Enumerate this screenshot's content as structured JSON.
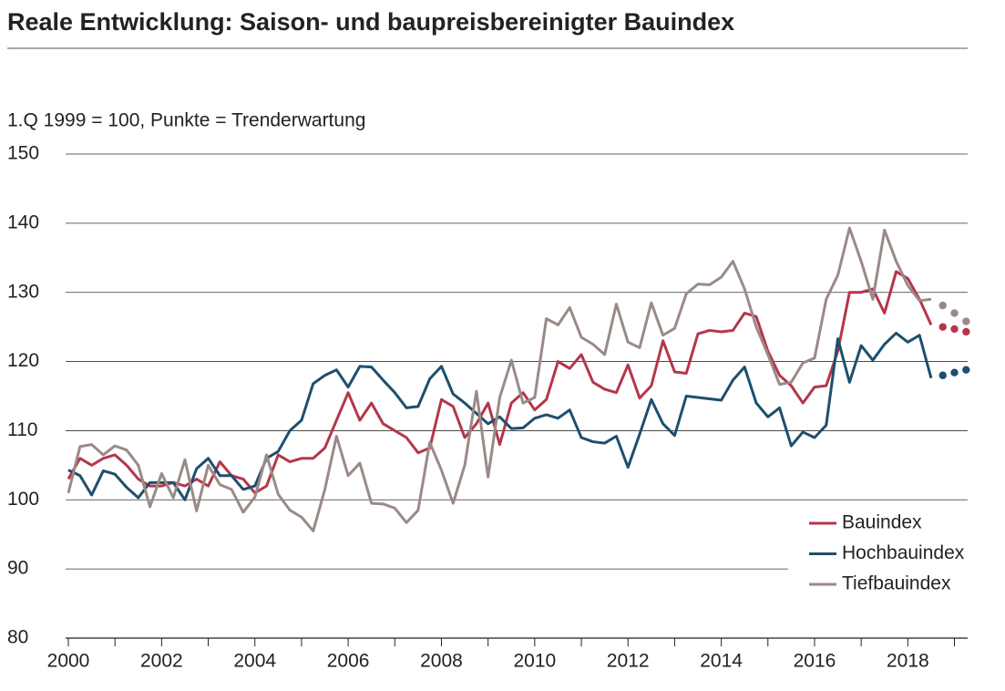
{
  "chart_data": {
    "type": "line",
    "title": "Reale Entwicklung: Saison- und baupreisbereinigter Bauindex",
    "subtitle": "1.Q 1999 = 100, Punkte = Trenderwartung",
    "x": [
      2000,
      2000.25,
      2000.5,
      2000.75,
      2001,
      2001.25,
      2001.5,
      2001.75,
      2002,
      2002.25,
      2002.5,
      2002.75,
      2003,
      2003.25,
      2003.5,
      2003.75,
      2004,
      2004.25,
      2004.5,
      2004.75,
      2005,
      2005.25,
      2005.5,
      2005.75,
      2006,
      2006.25,
      2006.5,
      2006.75,
      2007,
      2007.25,
      2007.5,
      2007.75,
      2008,
      2008.25,
      2008.5,
      2008.75,
      2009,
      2009.25,
      2009.5,
      2009.75,
      2010,
      2010.25,
      2010.5,
      2010.75,
      2011,
      2011.25,
      2011.5,
      2011.75,
      2012,
      2012.25,
      2012.5,
      2012.75,
      2013,
      2013.25,
      2013.5,
      2013.75,
      2014,
      2014.25,
      2014.5,
      2014.75,
      2015,
      2015.25,
      2015.5,
      2015.75,
      2016,
      2016.25,
      2016.5,
      2016.75,
      2017,
      2017.25,
      2017.5,
      2017.75,
      2018,
      2018.25,
      2018.5
    ],
    "trend_x": [
      2018.75,
      2019,
      2019.25
    ],
    "series": [
      {
        "name": "Bauindex",
        "color": "#b5364a",
        "values": [
          103,
          106,
          105,
          106,
          106.5,
          105,
          103,
          102,
          102,
          102.5,
          102,
          103,
          102,
          105.5,
          103.5,
          103,
          101,
          102,
          106.5,
          105.5,
          106,
          106,
          107.5,
          111.5,
          115.5,
          111.5,
          114,
          111,
          110,
          109,
          106.8,
          107.5,
          114.5,
          113.5,
          109,
          111,
          114,
          108,
          114,
          115.5,
          113,
          114.5,
          120,
          119,
          121,
          117,
          116,
          115.5,
          119.5,
          114.7,
          116.5,
          123,
          118.5,
          118.3,
          124,
          124.5,
          124.3,
          124.5,
          127,
          126.5,
          121.5,
          118,
          116.5,
          114,
          116.3,
          116.5,
          121.5,
          130,
          130,
          130.5,
          127,
          133,
          132,
          129,
          125.3
        ],
        "trend": [
          125,
          124.7,
          124.3
        ]
      },
      {
        "name": "Hochbauindex",
        "color": "#1d4f6e",
        "values": [
          104.3,
          103.5,
          100.7,
          104.2,
          103.7,
          101.8,
          100.3,
          102.5,
          102.5,
          102.5,
          100,
          104.5,
          106,
          103.5,
          103.5,
          101.5,
          102,
          106,
          107,
          110,
          111.5,
          116.8,
          118,
          118.8,
          116.3,
          119.3,
          119.2,
          117.3,
          115.5,
          113.3,
          113.5,
          117.5,
          119.3,
          115.3,
          114,
          112.5,
          111,
          112,
          110.3,
          110.4,
          111.8,
          112.3,
          111.8,
          113,
          109,
          108.4,
          108.2,
          109.2,
          104.7,
          109.5,
          114.5,
          111,
          109.3,
          115,
          114.8,
          114.6,
          114.4,
          117.3,
          119.2,
          114,
          112,
          113.3,
          107.8,
          109.8,
          109,
          110.8,
          123.3,
          117,
          122.3,
          120.2,
          122.5,
          124.1,
          122.8,
          123.8,
          117.6
        ],
        "trend": [
          118,
          118.4,
          118.8
        ]
      },
      {
        "name": "Tiefbauindex",
        "color": "#9a8a87",
        "values": [
          101,
          107.7,
          108,
          106.5,
          107.8,
          107.2,
          105,
          99,
          103.8,
          100.3,
          105.8,
          98.4,
          105,
          102.2,
          101.5,
          98.2,
          100.4,
          106.5,
          100.8,
          98.5,
          97.5,
          95.5,
          101.5,
          109.2,
          103.5,
          105.3,
          99.5,
          99.4,
          98.8,
          96.7,
          98.5,
          108.3,
          104.3,
          99.5,
          105,
          115.7,
          103.3,
          114.8,
          120.2,
          114,
          114.8,
          126.2,
          125.3,
          127.8,
          123.5,
          122.5,
          121,
          128.3,
          122.8,
          122,
          128.5,
          123.8,
          124.8,
          129.8,
          131.2,
          131.1,
          132.2,
          134.5,
          130.5,
          125,
          121,
          116.7,
          117,
          119.8,
          120.5,
          129,
          132.5,
          139.3,
          134.5,
          129,
          139,
          134.5,
          131,
          128.8,
          129
        ],
        "trend": [
          128.1,
          127,
          125.8
        ]
      }
    ],
    "xlim": [
      2000,
      2019.4
    ],
    "xticks": [
      2000,
      2002,
      2004,
      2006,
      2008,
      2010,
      2012,
      2014,
      2016,
      2018
    ],
    "xminorticks": [
      2001,
      2003,
      2005,
      2007,
      2009,
      2011,
      2013,
      2015,
      2017,
      2019
    ],
    "ylim": [
      80,
      150
    ],
    "yticks": [
      80,
      90,
      100,
      110,
      120,
      130,
      140,
      150
    ],
    "grid": true,
    "legend": "lower right"
  }
}
